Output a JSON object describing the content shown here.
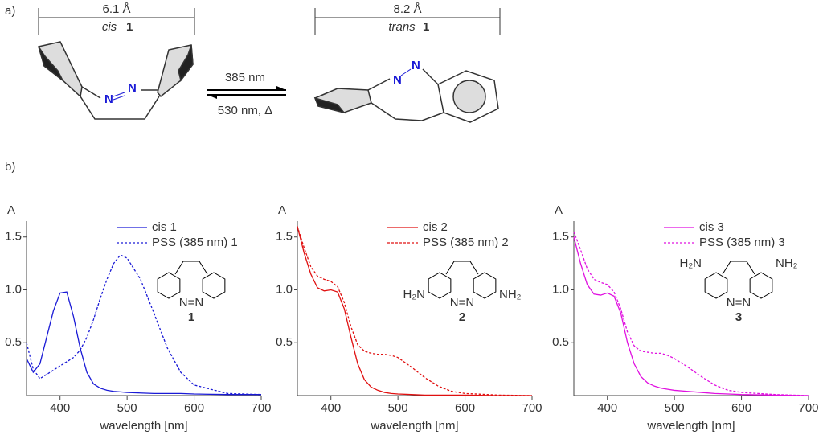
{
  "panel_a": {
    "label": "a)",
    "cis_width": "6.1 Å",
    "cis_prefix": "cis",
    "cis_number": "1",
    "trans_width": "8.2 Å",
    "trans_prefix": "trans",
    "trans_number": "1",
    "forward": "385 nm",
    "backward": "530 nm, Δ",
    "atom": "N"
  },
  "panel_b": {
    "label": "b)"
  },
  "chart_data": [
    {
      "type": "line",
      "y_label": "A",
      "x_label": "wavelength [nm]",
      "xlim": [
        350,
        700
      ],
      "ylim": [
        0,
        1.65
      ],
      "xticks": [
        400,
        500,
        600,
        700
      ],
      "yticks": [
        0.5,
        {
          "value": 1,
          "label": "1.0"
        },
        1.5
      ],
      "structure": {
        "number": "1",
        "azo": "N=N"
      },
      "x": [
        350,
        360,
        370,
        380,
        390,
        400,
        410,
        420,
        430,
        440,
        450,
        460,
        470,
        480,
        490,
        500,
        520,
        540,
        560,
        580,
        600,
        650,
        700
      ],
      "series": [
        {
          "name": "cis 1",
          "color": "#1a1ad6",
          "dashed": false,
          "values": [
            0.35,
            0.22,
            0.3,
            0.55,
            0.8,
            0.97,
            0.98,
            0.75,
            0.45,
            0.22,
            0.11,
            0.07,
            0.05,
            0.04,
            0.035,
            0.03,
            0.025,
            0.02,
            0.02,
            0.02,
            0.015,
            0.01,
            0.01
          ]
        },
        {
          "name": "PSS (385 nm) 1",
          "color": "#1a1ad6",
          "dashed": true,
          "values": [
            0.5,
            0.25,
            0.16,
            0.2,
            0.24,
            0.28,
            0.32,
            0.36,
            0.43,
            0.55,
            0.72,
            0.92,
            1.1,
            1.25,
            1.33,
            1.3,
            1.1,
            0.78,
            0.45,
            0.22,
            0.1,
            0.02,
            0.01
          ]
        }
      ]
    },
    {
      "type": "line",
      "y_label": "A",
      "x_label": "wavelength [nm]",
      "xlim": [
        350,
        700
      ],
      "ylim": [
        0,
        1.65
      ],
      "xticks": [
        400,
        500,
        600,
        700
      ],
      "yticks": [
        0.5,
        {
          "value": 1,
          "label": "1.0"
        },
        1.5
      ],
      "structure": {
        "number": "2",
        "azo": "N=N",
        "left_group": "H₂N",
        "right_group": "NH₂"
      },
      "x": [
        350,
        360,
        370,
        380,
        390,
        400,
        410,
        420,
        430,
        440,
        450,
        460,
        470,
        480,
        490,
        500,
        520,
        540,
        560,
        580,
        600,
        650,
        700
      ],
      "series": [
        {
          "name": "cis 2",
          "color": "#e01010",
          "dashed": false,
          "values": [
            1.6,
            1.35,
            1.15,
            1.02,
            0.99,
            1.0,
            0.98,
            0.82,
            0.55,
            0.3,
            0.15,
            0.08,
            0.05,
            0.03,
            0.02,
            0.015,
            0.01,
            0.005,
            0.005,
            0.005,
            0.005,
            0,
            0
          ]
        },
        {
          "name": "PSS (385 nm) 2",
          "color": "#e01010",
          "dashed": true,
          "values": [
            1.6,
            1.4,
            1.22,
            1.13,
            1.1,
            1.08,
            1.03,
            0.88,
            0.65,
            0.48,
            0.42,
            0.4,
            0.39,
            0.39,
            0.38,
            0.36,
            0.27,
            0.17,
            0.09,
            0.04,
            0.02,
            0.005,
            0
          ]
        }
      ]
    },
    {
      "type": "line",
      "y_label": "A",
      "x_label": "wavelength [nm]",
      "xlim": [
        350,
        700
      ],
      "ylim": [
        0,
        1.65
      ],
      "xticks": [
        400,
        500,
        600,
        700
      ],
      "yticks": [
        0.5,
        {
          "value": 1,
          "label": "1.0"
        },
        1.5
      ],
      "structure": {
        "number": "3",
        "azo": "N=N",
        "left_group": "H₂N",
        "right_group": "NH₂"
      },
      "x": [
        350,
        360,
        370,
        380,
        390,
        400,
        410,
        420,
        430,
        440,
        450,
        460,
        470,
        480,
        490,
        500,
        520,
        540,
        560,
        580,
        600,
        650,
        700
      ],
      "series": [
        {
          "name": "cis 3",
          "color": "#e010e0",
          "dashed": false,
          "values": [
            1.5,
            1.25,
            1.05,
            0.96,
            0.95,
            0.97,
            0.94,
            0.78,
            0.5,
            0.3,
            0.18,
            0.12,
            0.09,
            0.07,
            0.06,
            0.05,
            0.04,
            0.03,
            0.02,
            0.015,
            0.01,
            0.005,
            0
          ]
        },
        {
          "name": "PSS (385 nm) 3",
          "color": "#e010e0",
          "dashed": true,
          "values": [
            1.55,
            1.38,
            1.2,
            1.1,
            1.07,
            1.05,
            0.98,
            0.82,
            0.6,
            0.47,
            0.42,
            0.41,
            0.4,
            0.4,
            0.38,
            0.35,
            0.27,
            0.18,
            0.1,
            0.05,
            0.03,
            0.01,
            0
          ]
        }
      ]
    }
  ]
}
